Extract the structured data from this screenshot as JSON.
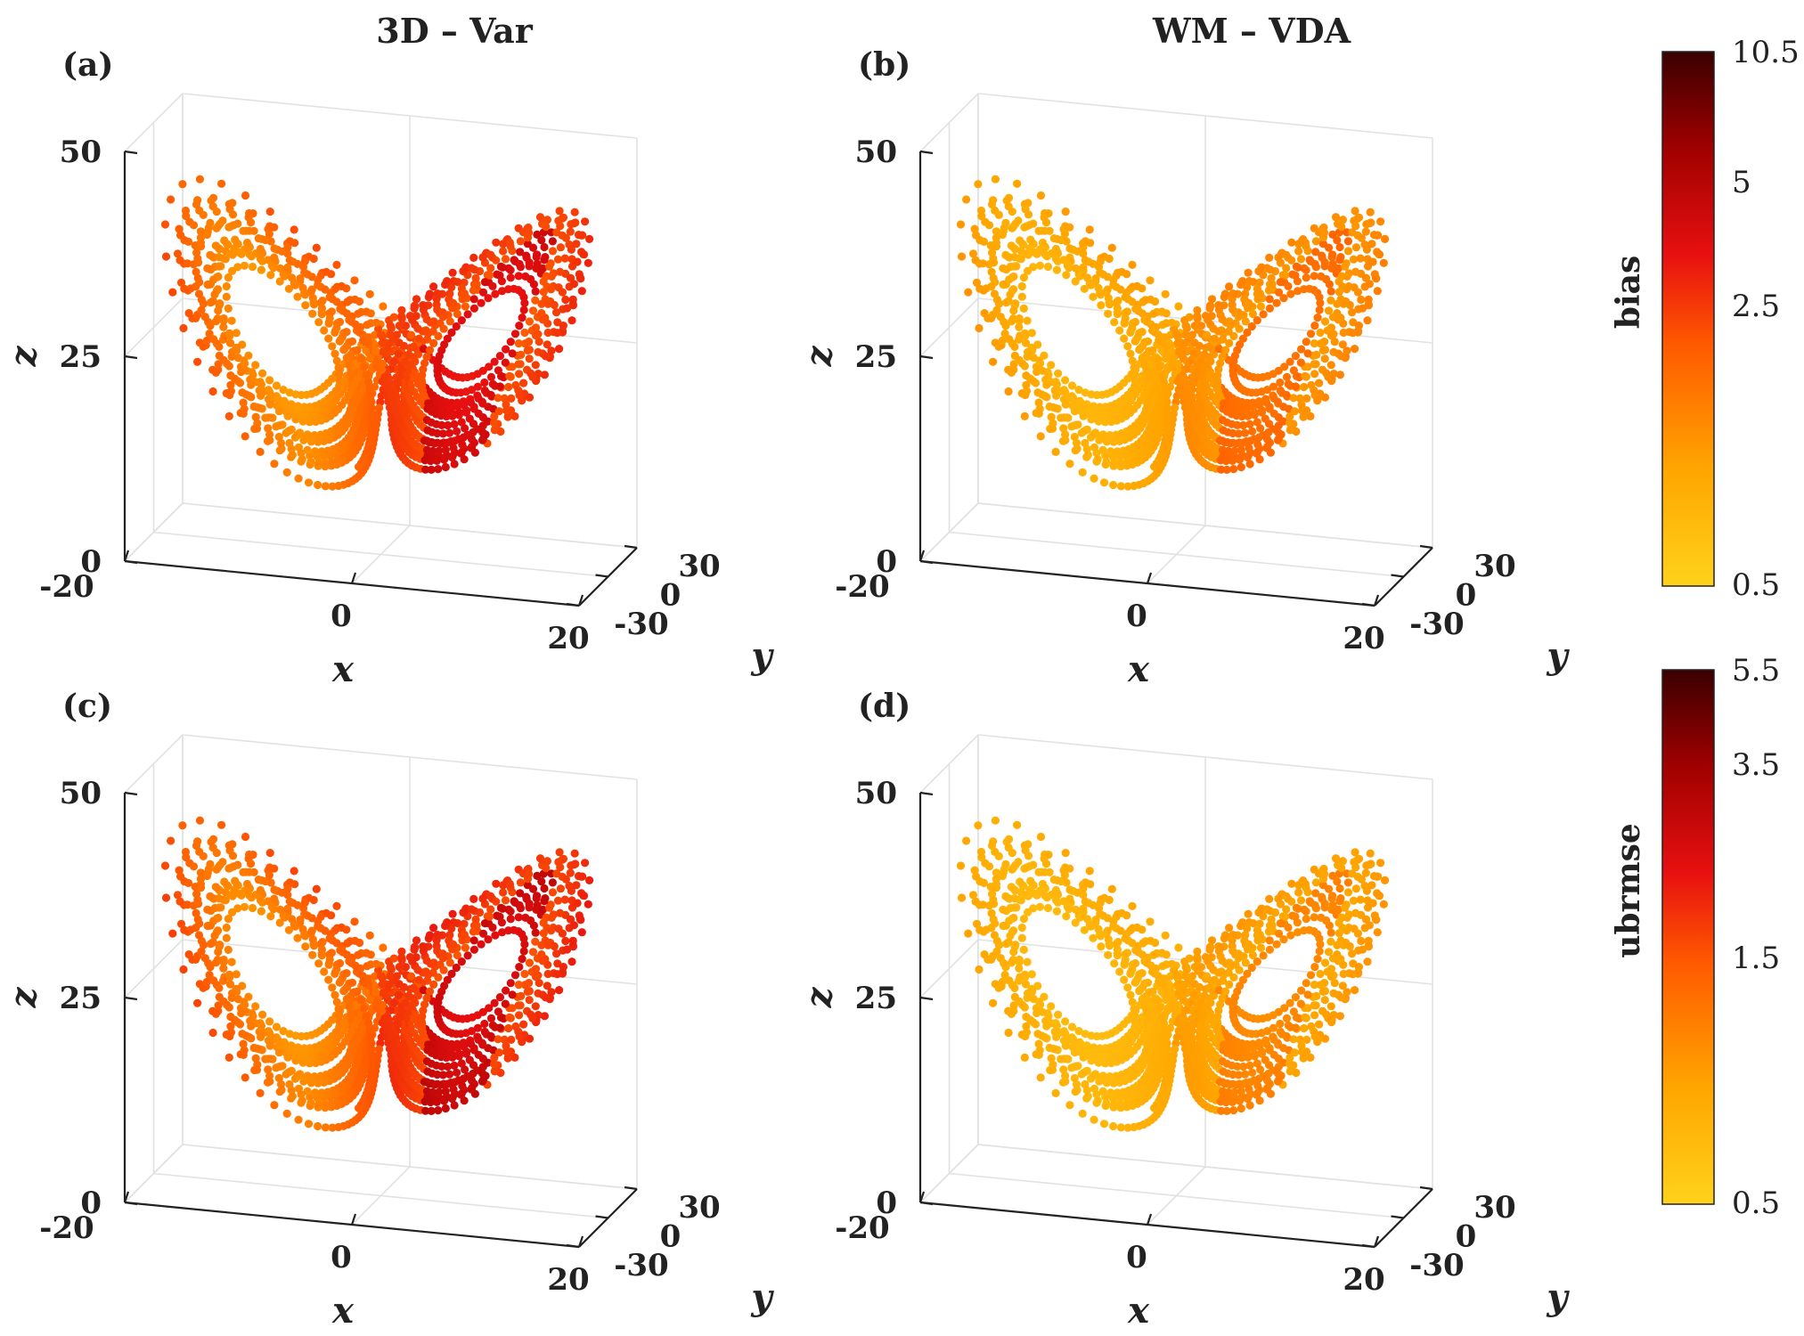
{
  "chart_data": {
    "type": "scatter",
    "columns": [
      "3D – Var",
      "WM – VDA"
    ],
    "panels": [
      {
        "id": "a",
        "label": "(a)",
        "method": "3D – Var",
        "metric": "bias",
        "intensity": 1.0
      },
      {
        "id": "b",
        "label": "(b)",
        "method": "WM – VDA",
        "metric": "bias",
        "intensity": 0.55
      },
      {
        "id": "c",
        "label": "(c)",
        "method": "3D – Var",
        "metric": "ubrmse",
        "intensity": 1.05
      },
      {
        "id": "d",
        "label": "(d)",
        "method": "WM – VDA",
        "metric": "ubrmse",
        "intensity": 0.45
      }
    ],
    "axes": {
      "x": {
        "label": "x",
        "range": [
          -20,
          20
        ],
        "ticks": [
          "-20",
          "0",
          "20"
        ]
      },
      "y": {
        "label": "y",
        "range": [
          -30,
          30
        ],
        "ticks": [
          "-30",
          "0",
          "30"
        ]
      },
      "z": {
        "label": "z",
        "range": [
          0,
          50
        ],
        "ticks": [
          "0",
          "25",
          "50"
        ]
      }
    },
    "colorbars": [
      {
        "label": "bias",
        "range": [
          0.5,
          10.5
        ],
        "scale": "log",
        "ticks": [
          "10.5",
          "5",
          "2.5",
          "0.5"
        ],
        "tick_values": [
          10.5,
          5,
          2.5,
          0.5
        ]
      },
      {
        "label": "ubrmse",
        "range": [
          0.5,
          5.5
        ],
        "scale": "log",
        "ticks": [
          "5.5",
          "3.5",
          "1.5",
          "0.5"
        ],
        "tick_values": [
          5.5,
          3.5,
          1.5,
          0.5
        ]
      }
    ],
    "colormap": [
      "#ffd21a",
      "#ffa500",
      "#ff5a00",
      "#e81010",
      "#a00000",
      "#3a0000"
    ],
    "series": "Lorenz-63 trajectory points colored by error magnitude",
    "grid": true
  }
}
